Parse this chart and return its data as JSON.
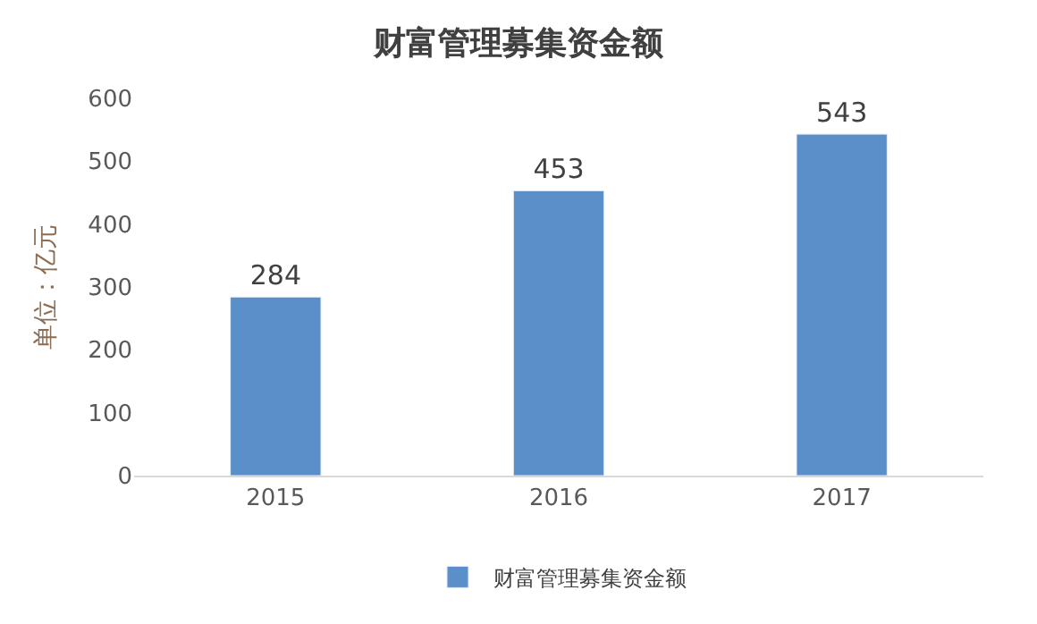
{
  "chart_data": {
    "type": "bar",
    "title": "财富管理募集资金额",
    "ylabel": "单位：亿元",
    "categories": [
      "2015",
      "2016",
      "2017"
    ],
    "series": [
      {
        "name": "财富管理募集资金额",
        "color": "#5b8fc9",
        "values": [
          284,
          453,
          543
        ]
      }
    ],
    "ylim": [
      0,
      600
    ],
    "yticks": [
      0,
      100,
      200,
      300,
      400,
      500,
      600
    ],
    "data_labels": true,
    "legend": "bottom",
    "grid": false
  }
}
